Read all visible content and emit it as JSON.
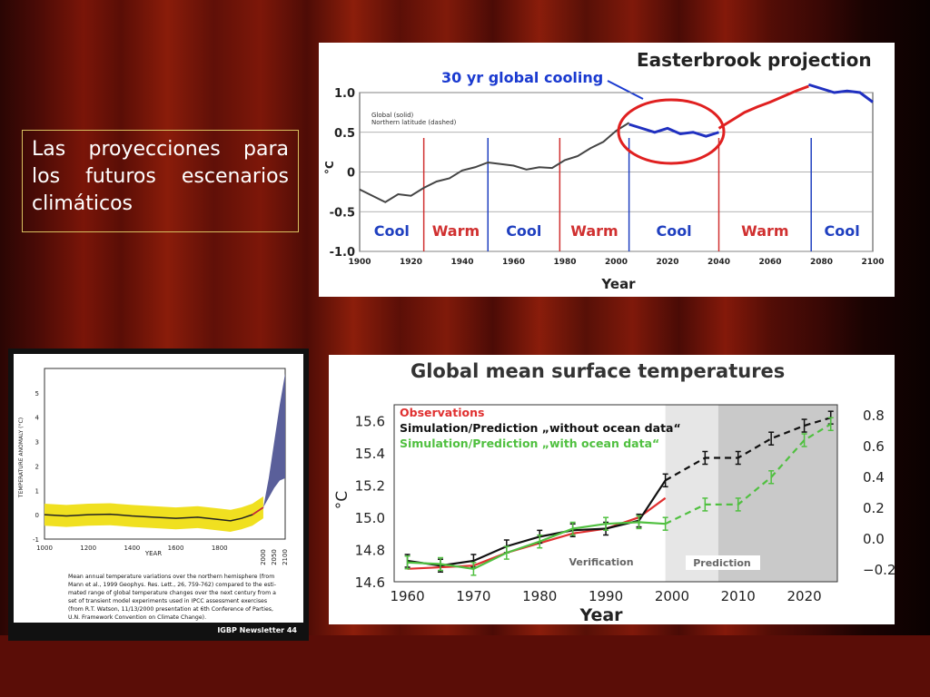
{
  "slide": {
    "caption": "Las proyecciones para los futuros escenarios climáticos"
  },
  "chart_data": [
    {
      "type": "line",
      "title": "Easterbrook projection",
      "annotation": "30 yr global cooling",
      "legend": [
        "Global (solid)",
        "Northern latitude (dashed)"
      ],
      "xlabel": "Year",
      "ylabel": "°C",
      "xlim": [
        1900,
        2100
      ],
      "ylim": [
        -1.0,
        1.0
      ],
      "x_ticks": [
        1900,
        1920,
        1940,
        1960,
        1980,
        2000,
        2020,
        2040,
        2060,
        2080,
        2100
      ],
      "y_ticks": [
        "1.0",
        "0.5",
        "0",
        "-0.5",
        "-1.0"
      ],
      "periods": [
        {
          "label": "Cool",
          "start": 1900,
          "end": 1925
        },
        {
          "label": "Warm",
          "start": 1925,
          "end": 1950
        },
        {
          "label": "Cool",
          "start": 1950,
          "end": 1978
        },
        {
          "label": "Warm",
          "start": 1978,
          "end": 2005
        },
        {
          "label": "Cool",
          "start": 2005,
          "end": 2040
        },
        {
          "label": "Warm",
          "start": 2040,
          "end": 2076
        },
        {
          "label": "Cool",
          "start": 2076,
          "end": 2100
        }
      ],
      "series": [
        {
          "values_x": [
            1900,
            1905,
            1910,
            1915,
            1920,
            1925,
            1930,
            1935,
            1940,
            1945,
            1950,
            1955,
            1960,
            1965,
            1970,
            1975,
            1980,
            1985,
            1990,
            1995,
            2000,
            2005
          ],
          "values_y": [
            -0.22,
            -0.3,
            -0.38,
            -0.28,
            -0.3,
            -0.2,
            -0.12,
            -0.08,
            0.02,
            0.06,
            0.12,
            0.1,
            0.08,
            0.03,
            0.06,
            0.05,
            0.15,
            0.2,
            0.3,
            0.38,
            0.52,
            0.62
          ]
        },
        {
          "values_x": [
            2005,
            2010,
            2015,
            2020,
            2025,
            2030,
            2035,
            2040
          ],
          "values_y": [
            0.6,
            0.55,
            0.5,
            0.55,
            0.48,
            0.5,
            0.45,
            0.5
          ]
        },
        {
          "values_x": [
            2040,
            2045,
            2050,
            2055,
            2060,
            2065,
            2070,
            2075
          ],
          "values_y": [
            0.55,
            0.65,
            0.75,
            0.82,
            0.88,
            0.95,
            1.02,
            1.08
          ]
        },
        {
          "values_x": [
            2075,
            2080,
            2085,
            2090,
            2095,
            2100
          ],
          "values_y": [
            1.1,
            1.05,
            1.0,
            1.02,
            1.0,
            0.88
          ]
        }
      ]
    },
    {
      "type": "area",
      "ylabel": "TEMPERATURE ANOMALY (°C)",
      "xlabel": "YEAR",
      "xlim": [
        1000,
        2100
      ],
      "ylim": [
        -1,
        6
      ],
      "x_ticks": [
        "1000",
        "1200",
        "1400",
        "1600",
        "1800",
        "2000",
        "2050",
        "2100"
      ],
      "y_ticks": [
        "5",
        "4",
        "3",
        "2",
        "1",
        "0",
        "-1"
      ],
      "description": "Mean annual temperature variations over the northern hemisphere (from Mann et al., 1999 Geophys. Res. Lett., 26, 759-762) compared to the estimated range of global temperature changes over the next century from a set of transient model experiments used in IPCC assessment exercises (from R.T. Watson, 11/13/2000 presentation at 6th Conference of Parties, U.N. Framework Convention on Climate Change).",
      "source": "IGBP Newsletter 44",
      "series": [
        {
          "x": [
            1000,
            1100,
            1200,
            1300,
            1400,
            1500,
            1600,
            1700,
            1800,
            1850,
            1900,
            1950,
            2000
          ],
          "y": [
            0.0,
            -0.05,
            0.0,
            0.02,
            -0.05,
            -0.1,
            -0.15,
            -0.1,
            -0.2,
            -0.25,
            -0.15,
            0.0,
            0.3
          ]
        },
        {
          "x": [
            2000,
            2025,
            2050,
            2075,
            2100
          ],
          "y_low": [
            0.3,
            0.7,
            1.1,
            1.4,
            1.5
          ],
          "y_high": [
            0.3,
            1.5,
            3.0,
            4.5,
            5.8
          ]
        }
      ]
    },
    {
      "type": "line",
      "title": "Global mean surface temperatures",
      "xlabel": "Year",
      "ylabel": "°C",
      "xlim": [
        1958,
        2025
      ],
      "ylim": [
        14.6,
        15.7
      ],
      "x_ticks": [
        "1960",
        "1970",
        "1980",
        "1990",
        "2000",
        "2010",
        "2020"
      ],
      "y_ticks": [
        "15.6",
        "15.4",
        "15.2",
        "15.0",
        "14.8",
        "14.6"
      ],
      "y2_ticks": [
        "0.8",
        "0.6",
        "0.4",
        "0.2",
        "0.0",
        "−0.2"
      ],
      "regions": [
        {
          "label": "Verification",
          "start": 1958,
          "end": 1999
        },
        {
          "label": "Prediction",
          "start": 1999,
          "end": 2025
        }
      ],
      "series": [
        {
          "name": "Observations",
          "color": "#e03030",
          "x": [
            1960,
            1965,
            1970,
            1975,
            1980,
            1985,
            1990,
            1995,
            1999
          ],
          "y": [
            14.68,
            14.69,
            14.7,
            14.78,
            14.84,
            14.9,
            14.93,
            15.0,
            15.12
          ]
        },
        {
          "name": "Simulation/Prediction „without ocean data“",
          "color": "#111111",
          "x": [
            1960,
            1965,
            1970,
            1975,
            1980,
            1985,
            1990,
            1995,
            1999,
            2005,
            2010,
            2015,
            2020,
            2024
          ],
          "y": [
            14.73,
            14.7,
            14.73,
            14.82,
            14.88,
            14.92,
            14.93,
            14.98,
            15.23,
            15.37,
            15.37,
            15.49,
            15.57,
            15.62
          ]
        },
        {
          "name": "Simulation/Prediction „with ocean data“",
          "color": "#50c040",
          "x": [
            1960,
            1965,
            1970,
            1975,
            1980,
            1985,
            1990,
            1995,
            1999,
            2005,
            2010,
            2015,
            2020,
            2024
          ],
          "y": [
            14.72,
            14.71,
            14.68,
            14.78,
            14.85,
            14.93,
            14.96,
            14.97,
            14.96,
            15.08,
            15.08,
            15.25,
            15.48,
            15.58
          ]
        }
      ]
    }
  ]
}
